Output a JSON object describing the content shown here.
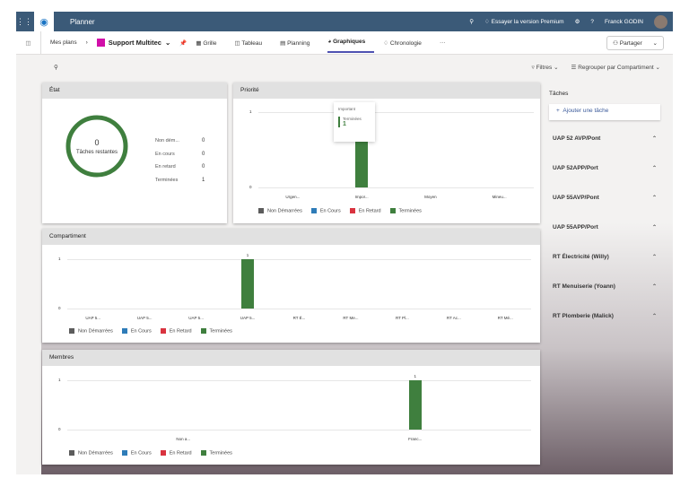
{
  "header": {
    "app": "Planner",
    "premium": "Essayer la version Premium",
    "user": "Franck GODIN",
    "help": "?"
  },
  "nav": {
    "breadcrumb": "Mes plans",
    "plan": "Support Multitec",
    "views": [
      "Grille",
      "Tableau",
      "Planning",
      "Graphiques",
      "Chronologie"
    ],
    "more": "···",
    "share": "Partager"
  },
  "toolbar": {
    "filters": "Filtres",
    "group": "Regrouper par Compartiment"
  },
  "legend": [
    {
      "label": "Non Démarrées",
      "color": "#5c5c5c"
    },
    {
      "label": "En Cours",
      "color": "#2e7cb8"
    },
    {
      "label": "En Retard",
      "color": "#d9333f"
    },
    {
      "label": "Terminées",
      "color": "#3f7f3e"
    }
  ],
  "etat": {
    "title": "État",
    "count": "0",
    "caption": "Tâches restantes",
    "rows": [
      {
        "label": "Non dém...",
        "value": "0"
      },
      {
        "label": "En cours",
        "value": "0"
      },
      {
        "label": "En retard",
        "value": "0"
      },
      {
        "label": "Terminées",
        "value": "1"
      }
    ]
  },
  "chart_data": [
    {
      "title": "Priorité",
      "type": "bar",
      "categories": [
        "Urgen...",
        "Impor...",
        "Moyen",
        "Mineu..."
      ],
      "series": [
        {
          "name": "Terminées",
          "values": [
            0,
            1,
            0,
            0
          ]
        }
      ],
      "yticks": [
        "0",
        "1"
      ],
      "ylim": [
        0,
        1
      ],
      "tooltip": {
        "title": "Important",
        "label": "Terminées",
        "value": "1"
      }
    },
    {
      "title": "Compartiment",
      "type": "bar",
      "categories": [
        "UAP 5...",
        "UAP 5...",
        "UAP 5...",
        "UAP 5...",
        "RT É...",
        "RT Me...",
        "RT Pl...",
        "RT Ac...",
        "RT Mé..."
      ],
      "series": [
        {
          "name": "Terminées",
          "values": [
            0,
            0,
            0,
            1,
            0,
            0,
            0,
            0,
            0
          ]
        }
      ],
      "yticks": [
        "0",
        "1"
      ],
      "ylim": [
        0,
        1
      ],
      "labels": [
        "",
        "",
        "",
        "1",
        "",
        "",
        "",
        "",
        ""
      ]
    },
    {
      "title": "Membres",
      "type": "bar",
      "categories": [
        "Non a...",
        "Franc..."
      ],
      "series": [
        {
          "name": "Terminées",
          "values": [
            0,
            1
          ]
        }
      ],
      "yticks": [
        "0",
        "1"
      ],
      "ylim": [
        0,
        1
      ],
      "labels": [
        "",
        "1"
      ]
    }
  ],
  "tasks": {
    "title": "Tâches",
    "add": "Ajouter une tâche",
    "buckets": [
      "UAP 52 AVP/Pont",
      "UAP 52APP/Port",
      "UAP 55AVP/Pont",
      "UAP 55APP/Port",
      "RT Électricité (Willy)",
      "RT Menuiserie (Yoann)",
      "RT Plomberie (Malick)"
    ]
  }
}
